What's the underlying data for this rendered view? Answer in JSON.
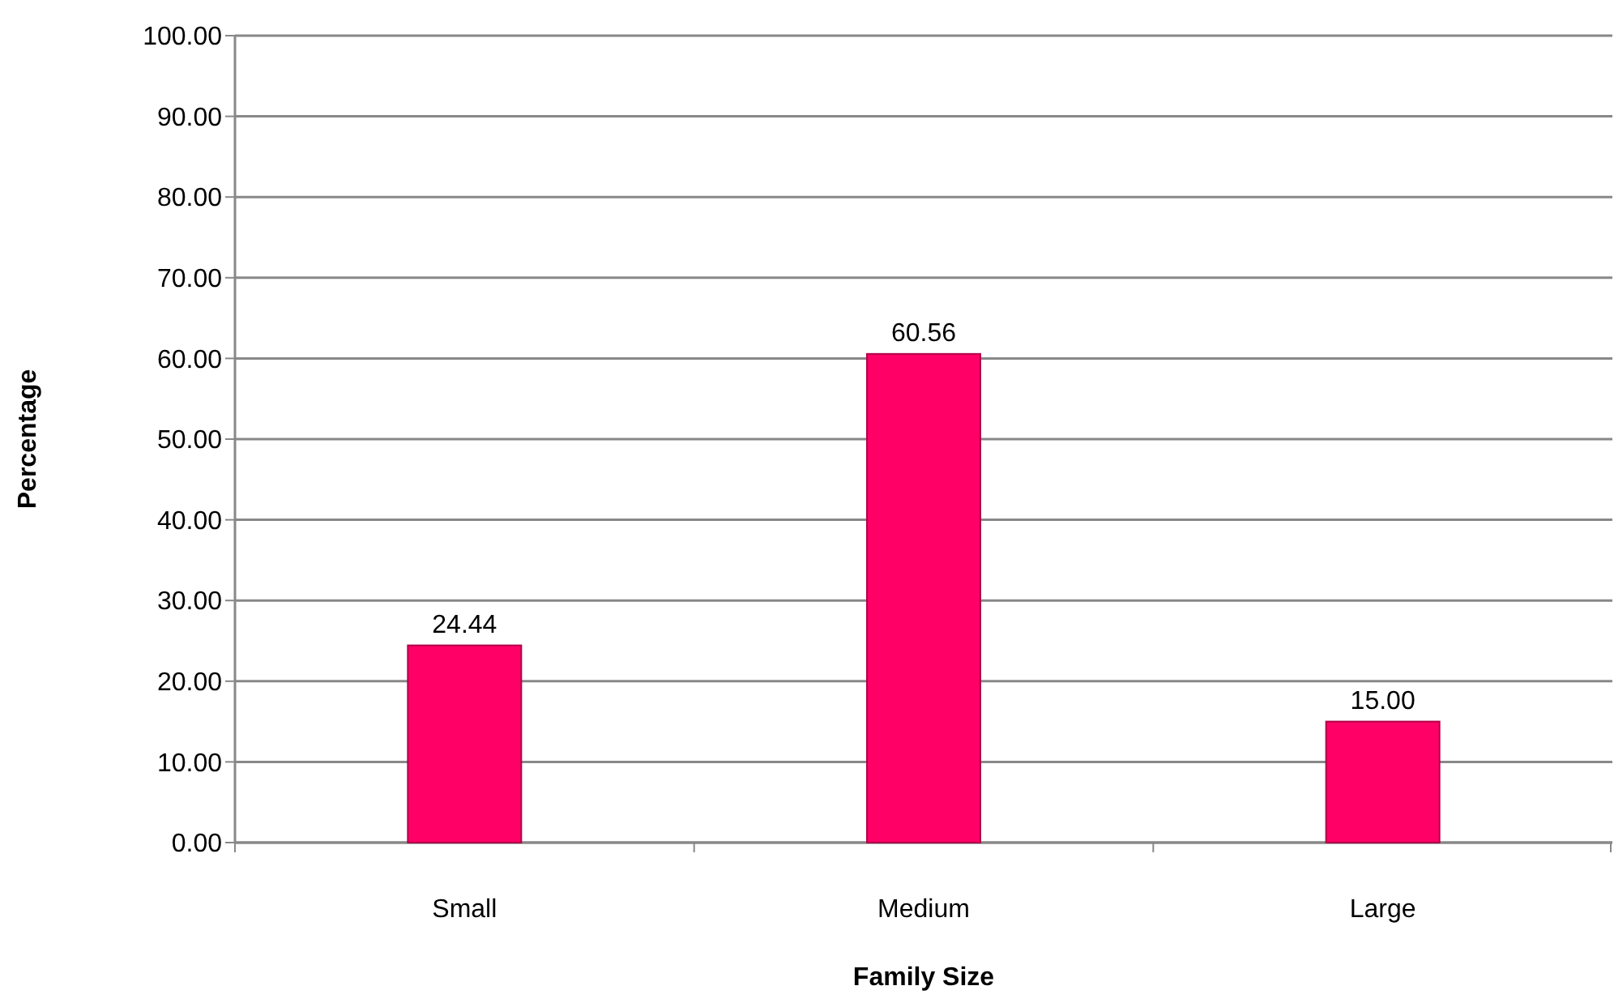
{
  "chart_data": {
    "type": "bar",
    "xlabel": "Family Size",
    "ylabel": "Percentage",
    "categories": [
      "Small",
      "Medium",
      "Large"
    ],
    "values": [
      24.44,
      60.56,
      15.0
    ],
    "value_labels": [
      "24.44",
      "60.56",
      "15.00"
    ],
    "color": "#ff0066",
    "ylim": [
      0,
      100
    ],
    "yticks": [
      {
        "value": 0,
        "label": "0.00"
      },
      {
        "value": 10,
        "label": "10.00"
      },
      {
        "value": 20,
        "label": "20.00"
      },
      {
        "value": 30,
        "label": "30.00"
      },
      {
        "value": 40,
        "label": "40.00"
      },
      {
        "value": 50,
        "label": "50.00"
      },
      {
        "value": 60,
        "label": "60.00"
      },
      {
        "value": 70,
        "label": "70.00"
      },
      {
        "value": 80,
        "label": "80.00"
      },
      {
        "value": 90,
        "label": "90.00"
      },
      {
        "value": 100,
        "label": "100.00"
      }
    ],
    "grid": "y"
  }
}
